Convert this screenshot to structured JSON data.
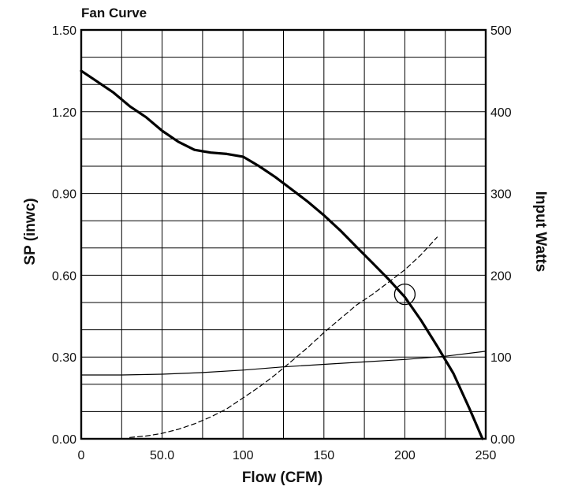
{
  "chart_data": {
    "type": "line",
    "title": "Fan Curve",
    "xlabel": "Flow (CFM)",
    "ylabel": "SP (inwc)",
    "y2label": "Input Watts",
    "xlim": [
      0,
      250
    ],
    "ylim": [
      0,
      1.5
    ],
    "y2lim": [
      0,
      500
    ],
    "grid": true,
    "x_ticks": [
      "0",
      "50.0",
      "100",
      "150",
      "200",
      "250"
    ],
    "y_ticks": [
      "0.00",
      "0.30",
      "0.60",
      "0.90",
      "1.20",
      "1.50"
    ],
    "y2_ticks": [
      "0.00",
      "100",
      "200",
      "300",
      "400",
      "500"
    ],
    "series": [
      {
        "style": "thick-solid",
        "axis": "left",
        "x": [
          0,
          10,
          20,
          30,
          40,
          50,
          60,
          70,
          80,
          90,
          100,
          110,
          120,
          130,
          140,
          150,
          160,
          170,
          180,
          190,
          200,
          210,
          220,
          230,
          240,
          248
        ],
        "y": [
          1.35,
          1.31,
          1.27,
          1.22,
          1.18,
          1.13,
          1.09,
          1.06,
          1.05,
          1.045,
          1.035,
          1.0,
          0.96,
          0.915,
          0.87,
          0.82,
          0.765,
          0.705,
          0.645,
          0.585,
          0.52,
          0.435,
          0.34,
          0.24,
          0.11,
          0.0
        ]
      },
      {
        "style": "dashed",
        "axis": "left",
        "x": [
          30,
          40,
          50,
          60,
          70,
          80,
          90,
          100,
          110,
          120,
          130,
          140,
          150,
          160,
          170,
          180,
          190,
          200,
          210,
          220
        ],
        "y": [
          0.005,
          0.01,
          0.02,
          0.035,
          0.055,
          0.08,
          0.11,
          0.15,
          0.19,
          0.235,
          0.285,
          0.335,
          0.39,
          0.44,
          0.49,
          0.53,
          0.575,
          0.62,
          0.675,
          0.74
        ]
      },
      {
        "style": "thin-solid",
        "axis": "right",
        "x": [
          0,
          25,
          50,
          75,
          100,
          125,
          150,
          175,
          200,
          225,
          250
        ],
        "y": [
          78,
          78,
          79,
          81,
          84,
          88,
          91,
          94,
          97,
          101,
          107
        ]
      }
    ],
    "annotations": [
      {
        "shape": "circle",
        "x": 200,
        "y": 0.53
      }
    ],
    "colors": {
      "line": "#000000",
      "grid": "#000000",
      "background": "#ffffff"
    }
  }
}
